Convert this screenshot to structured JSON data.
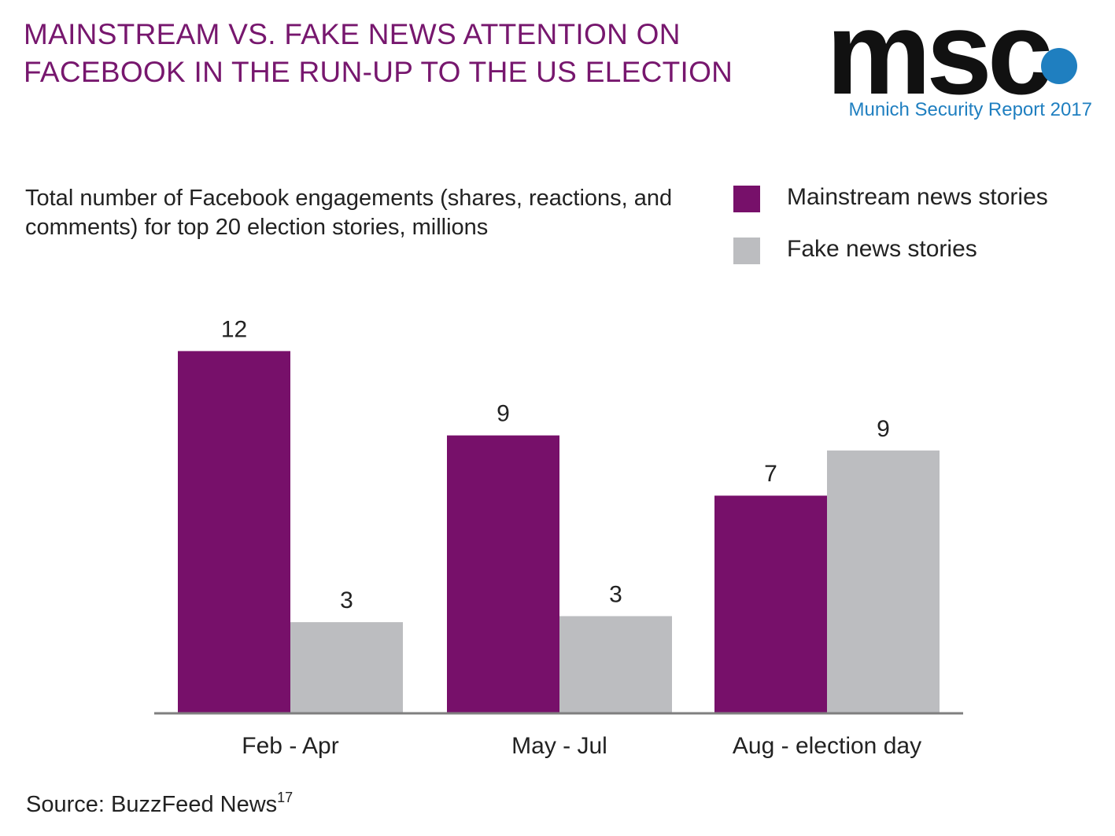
{
  "header": {
    "title_line1": "MAINSTREAM VS. FAKE NEWS ATTENTION ON",
    "title_line2": "FACEBOOK IN THE RUN-UP TO THE US ELECTION"
  },
  "logo": {
    "wordmark": "msc",
    "subtitle": "Munich Security Report 2017"
  },
  "source": {
    "label": "Source: BuzzFeed News",
    "footnote": "17"
  },
  "colors": {
    "title": "#77176e",
    "mainstream": "#77106a",
    "fake": "#bcbdc0",
    "logo_accent": "#1f7fc0",
    "axis": "#7f7f7f"
  },
  "chart_data": {
    "type": "bar",
    "subtitle": "Total number of Facebook engagements (shares, reactions, and comments) for top 20 election stories, millions",
    "categories": [
      "Feb - Apr",
      "May - Jul",
      "Aug - election day"
    ],
    "series": [
      {
        "name": "Mainstream news stories",
        "values": [
          12,
          9,
          7
        ],
        "labels": [
          "12",
          "9",
          "7"
        ]
      },
      {
        "name": "Fake news stories",
        "values": [
          3,
          3,
          9
        ],
        "labels": [
          "3",
          "3",
          "9"
        ]
      }
    ],
    "exact_values": [
      [
        12.0,
        9.2,
        7.2
      ],
      [
        3.0,
        3.2,
        8.7
      ]
    ],
    "ylim": [
      0,
      12
    ],
    "grid": false,
    "legend_position": "top-right"
  }
}
